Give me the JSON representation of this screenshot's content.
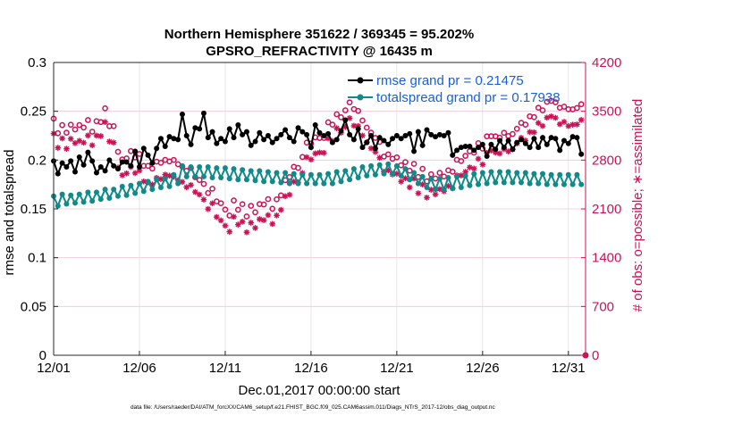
{
  "chart_data": {
    "type": "line",
    "title_line1": "Northern Hemisphere 351622 / 369345 = 95.202%",
    "title_line2": "GPSRO_REFRACTIVITY @ 16435 m",
    "xlabel": "Dec.01,2017 00:00:00 start",
    "ylabel_left": "rmse and totalspread",
    "ylabel_right": "# of obs: o=possible; ∗=assimilated",
    "footnote": "data file: /Users/raeder/DAI/ATM_forcXX/CAM6_setup/f.e21.FHIST_BGC.f09_025.CAM6assim.011/Diags_NTrS_2017-12/obs_diag_output.nc",
    "xlim": [
      0,
      31
    ],
    "ylim_left": [
      0,
      0.3
    ],
    "ylim_right": [
      0,
      4200
    ],
    "x_ticks": [
      {
        "value": 0,
        "label": "12/01"
      },
      {
        "value": 5,
        "label": "12/06"
      },
      {
        "value": 10,
        "label": "12/11"
      },
      {
        "value": 15,
        "label": "12/16"
      },
      {
        "value": 20,
        "label": "12/21"
      },
      {
        "value": 25,
        "label": "12/26"
      },
      {
        "value": 30,
        "label": "12/31"
      }
    ],
    "y_ticks_left": [
      {
        "value": 0,
        "label": "0"
      },
      {
        "value": 0.05,
        "label": "0.05"
      },
      {
        "value": 0.1,
        "label": "0.1"
      },
      {
        "value": 0.15,
        "label": "0.15"
      },
      {
        "value": 0.2,
        "label": "0.2"
      },
      {
        "value": 0.25,
        "label": "0.25"
      },
      {
        "value": 0.3,
        "label": "0.3"
      }
    ],
    "y_ticks_right": [
      {
        "value": 0,
        "label": "0"
      },
      {
        "value": 700,
        "label": "700"
      },
      {
        "value": 1400,
        "label": "1400"
      },
      {
        "value": 2100,
        "label": "2100"
      },
      {
        "value": 2800,
        "label": "2800"
      },
      {
        "value": 3500,
        "label": "3500"
      },
      {
        "value": 4200,
        "label": "4200"
      }
    ],
    "legend": [
      {
        "label": "rmse grand pr = 0.21475",
        "color": "#000000"
      },
      {
        "label": "totalspread grand pr = 0.17938",
        "color": "#108a8a"
      }
    ],
    "legend_text_color": "#1a5fd6",
    "right_axis_color": "#cc1155",
    "n_points": 124,
    "t_step": 0.25,
    "series": [
      {
        "name": "rmse",
        "color": "#000000",
        "values": [
          0.199,
          0.186,
          0.197,
          0.193,
          0.199,
          0.188,
          0.203,
          0.195,
          0.208,
          0.199,
          0.187,
          0.193,
          0.189,
          0.2,
          0.194,
          0.191,
          0.198,
          0.198,
          0.194,
          0.209,
          0.193,
          0.212,
          0.205,
          0.197,
          0.212,
          0.222,
          0.214,
          0.224,
          0.222,
          0.221,
          0.247,
          0.225,
          0.216,
          0.233,
          0.232,
          0.248,
          0.223,
          0.229,
          0.217,
          0.222,
          0.219,
          0.232,
          0.223,
          0.236,
          0.226,
          0.229,
          0.215,
          0.219,
          0.228,
          0.221,
          0.225,
          0.218,
          0.222,
          0.226,
          0.231,
          0.223,
          0.219,
          0.233,
          0.229,
          0.226,
          0.213,
          0.236,
          0.228,
          0.225,
          0.227,
          0.218,
          0.221,
          0.23,
          0.241,
          0.226,
          0.221,
          0.232,
          0.213,
          0.218,
          0.225,
          0.212,
          0.223,
          0.22,
          0.216,
          0.222,
          0.225,
          0.222,
          0.225,
          0.227,
          0.209,
          0.229,
          0.215,
          0.231,
          0.226,
          0.224,
          0.226,
          0.225,
          0.228,
          0.205,
          0.21,
          0.213,
          0.214,
          0.214,
          0.21,
          0.213,
          0.216,
          0.204,
          0.216,
          0.211,
          0.22,
          0.213,
          0.22,
          0.211,
          0.218,
          0.221,
          0.217,
          0.213,
          0.222,
          0.213,
          0.223,
          0.216,
          0.223,
          0.222,
          0.21,
          0.22,
          0.217,
          0.224,
          0.223,
          0.206
        ]
      },
      {
        "name": "totalspread",
        "color": "#108a8a",
        "values": [
          0.163,
          0.153,
          0.165,
          0.155,
          0.164,
          0.156,
          0.165,
          0.157,
          0.167,
          0.158,
          0.167,
          0.16,
          0.17,
          0.161,
          0.17,
          0.163,
          0.173,
          0.164,
          0.174,
          0.166,
          0.176,
          0.168,
          0.178,
          0.17,
          0.18,
          0.172,
          0.181,
          0.173,
          0.185,
          0.176,
          0.194,
          0.183,
          0.193,
          0.183,
          0.193,
          0.183,
          0.193,
          0.182,
          0.192,
          0.182,
          0.192,
          0.181,
          0.191,
          0.18,
          0.19,
          0.18,
          0.189,
          0.179,
          0.189,
          0.178,
          0.188,
          0.178,
          0.187,
          0.177,
          0.187,
          0.176,
          0.186,
          0.176,
          0.185,
          0.176,
          0.185,
          0.176,
          0.185,
          0.176,
          0.186,
          0.176,
          0.188,
          0.178,
          0.189,
          0.18,
          0.191,
          0.182,
          0.193,
          0.184,
          0.194,
          0.185,
          0.195,
          0.186,
          0.196,
          0.186,
          0.194,
          0.184,
          0.191,
          0.18,
          0.187,
          0.176,
          0.183,
          0.172,
          0.181,
          0.17,
          0.181,
          0.17,
          0.182,
          0.171,
          0.183,
          0.172,
          0.184,
          0.174,
          0.186,
          0.175,
          0.187,
          0.176,
          0.188,
          0.177,
          0.188,
          0.177,
          0.188,
          0.177,
          0.187,
          0.177,
          0.187,
          0.176,
          0.186,
          0.176,
          0.186,
          0.175,
          0.185,
          0.175,
          0.185,
          0.175,
          0.185,
          0.175,
          0.185,
          0.175
        ]
      },
      {
        "name": "possible",
        "color": "#cc1155",
        "marker": "o",
        "values": [
          3395,
          3185,
          3302,
          3193,
          3307,
          3239,
          3303,
          3267,
          3374,
          3207,
          3358,
          3345,
          3542,
          3286,
          3287,
          2919,
          2809,
          2823,
          2929,
          2838,
          2888,
          2717,
          2717,
          2678,
          2778,
          2761,
          2803,
          2780,
          2802,
          2740,
          2708,
          2646,
          2687,
          2555,
          2515,
          2458,
          2328,
          2389,
          2208,
          2181,
          2090,
          2004,
          2220,
          2087,
          2168,
          1991,
          2144,
          2051,
          2169,
          2163,
          2240,
          2102,
          2237,
          2294,
          2512,
          2557,
          2704,
          2688,
          2845,
          3051,
          3038,
          3126,
          3116,
          3118,
          3342,
          3308,
          3457,
          3414,
          3514,
          3628,
          3532,
          3505,
          3368,
          3266,
          3194,
          3118,
          3060,
          2850,
          2882,
          2819,
          2839,
          2726,
          2771,
          2648,
          2746,
          2558,
          2675,
          2496,
          2596,
          2535,
          2617,
          2565,
          2653,
          2633,
          2805,
          2786,
          2860,
          2927,
          2907,
          3043,
          2965,
          3140,
          3142,
          3140,
          3122,
          3192,
          3146,
          3174,
          3249,
          3334,
          3308,
          3428,
          3416,
          3551,
          3514,
          3637,
          3649,
          3629,
          3551,
          3566,
          3529,
          3528,
          3547,
          3601
        ]
      },
      {
        "name": "assimilated",
        "color": "#cc1155",
        "marker": "*",
        "values": [
          3180,
          2976,
          3111,
          2962,
          3105,
          3043,
          3076,
          3049,
          3153,
          3012,
          3151,
          3144,
          3346,
          3066,
          3051,
          2693,
          2583,
          2609,
          2701,
          2613,
          2648,
          2493,
          2482,
          2449,
          2545,
          2527,
          2591,
          2576,
          2562,
          2512,
          2487,
          2411,
          2442,
          2342,
          2305,
          2233,
          2098,
          2180,
          1983,
          1934,
          1859,
          1772,
          1987,
          1875,
          1916,
          1764,
          1901,
          1826,
          1953,
          1938,
          2011,
          1884,
          2006,
          2085,
          2281,
          2302,
          2490,
          2481,
          2614,
          2841,
          2808,
          2895,
          2909,
          2903,
          3110,
          3074,
          3257,
          3191,
          3276,
          3401,
          3292,
          3288,
          3152,
          3056,
          2968,
          2916,
          2833,
          2633,
          2652,
          2594,
          2605,
          2492,
          2539,
          2409,
          2536,
          2324,
          2451,
          2261,
          2375,
          2308,
          2384,
          2353,
          2428,
          2395,
          2580,
          2579,
          2631,
          2695,
          2678,
          2818,
          2736,
          2903,
          2937,
          2908,
          2894,
          2956,
          2924,
          2954,
          3039,
          3119,
          3080,
          3203,
          3198,
          3332,
          3289,
          3409,
          3427,
          3406,
          3315,
          3348,
          3288,
          3308,
          3311,
          3376
        ]
      }
    ]
  }
}
